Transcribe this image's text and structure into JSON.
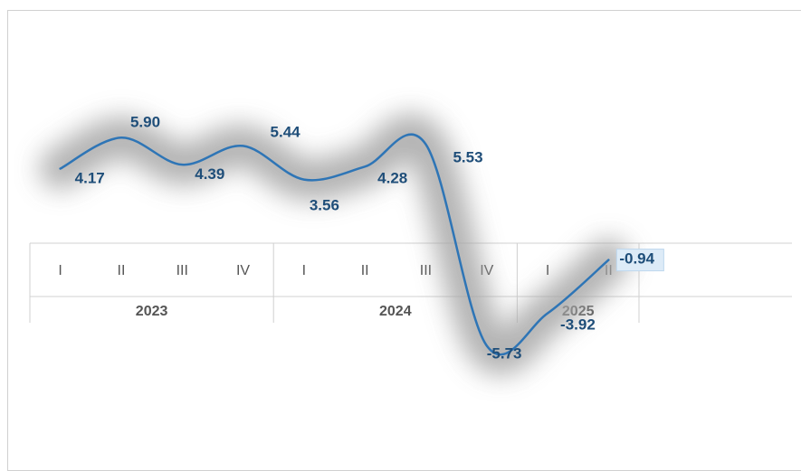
{
  "chart_data": {
    "type": "line",
    "categories": [
      "I",
      "II",
      "III",
      "IV",
      "I",
      "II",
      "III",
      "IV",
      "I",
      "II"
    ],
    "years": [
      {
        "label": "2023",
        "quarters": 4
      },
      {
        "label": "2024",
        "quarters": 4
      },
      {
        "label": "2025",
        "quarters": 2
      }
    ],
    "series": [
      {
        "values": [
          4.17,
          5.9,
          4.39,
          5.44,
          3.56,
          4.28,
          5.53,
          -5.73,
          -3.92,
          -0.94
        ],
        "labels": [
          "4.17",
          "5.90",
          "4.39",
          "5.44",
          "3.56",
          "4.28",
          "5.53",
          "-5.73",
          "-3.92",
          "-0.94"
        ],
        "color": "#2e75b6"
      }
    ],
    "last_label_background": "#ddebf7",
    "shadow_color": "#a6a6a6",
    "smooth": true,
    "grid": false,
    "legend": "none"
  }
}
